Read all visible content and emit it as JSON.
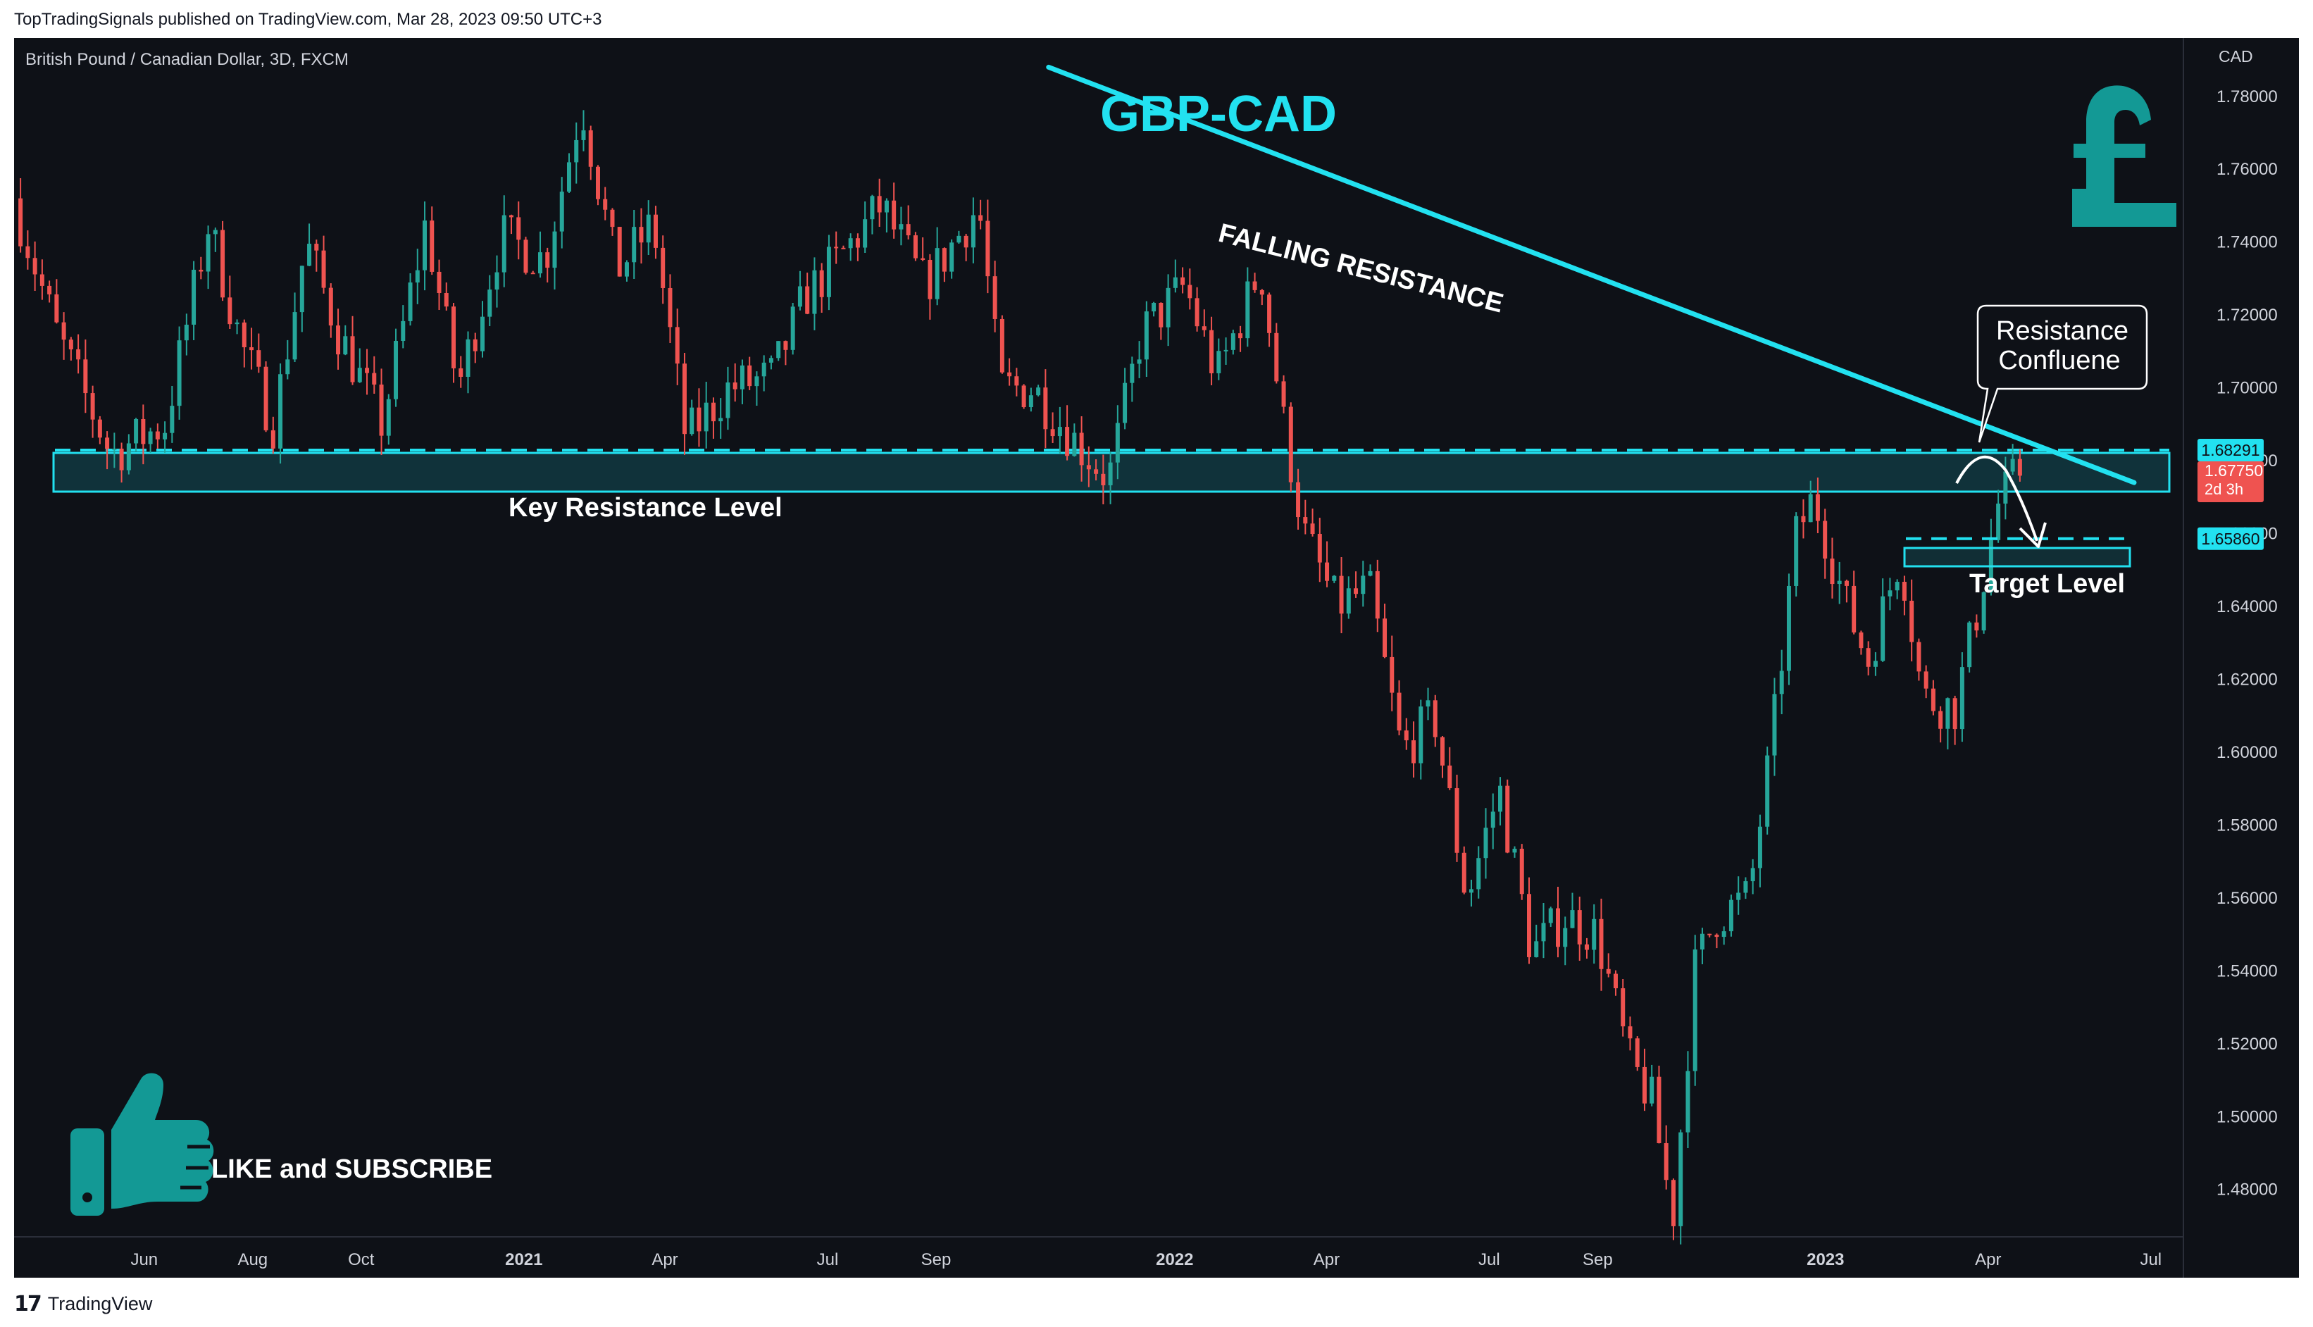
{
  "publisher_line": "TopTradingSignals published on TradingView.com, Mar 28, 2023 09:50 UTC+3",
  "footer_brand": "TradingView",
  "symbol_line": "British Pound / Canadian Dollar, 3D, FXCM",
  "currency": "CAD",
  "colors": {
    "background": "#0e1117",
    "up": "#26a69a",
    "down": "#ef5350",
    "accent": "#22e1f0",
    "teal_icon": "#139995"
  },
  "icons": [
    "pound-icon",
    "thumbs-up-icon",
    "tradingview-logo-icon"
  ],
  "annotations": {
    "title": "GBP-CAD",
    "falling_resistance": "FALLING RESISTANCE",
    "key_resistance": "Key Resistance Level",
    "target_level": "Target Level",
    "callout_line1": "Resistance",
    "callout_line2": "Confluene",
    "like_subscribe": "LIKE and SUBSCRIBE"
  },
  "chart_data": {
    "type": "candlestick",
    "symbol": "GBPCAD",
    "timeframe": "3D",
    "ylim": [
      1.467,
      1.796
    ],
    "y_ticks": [
      "1.78000",
      "1.76000",
      "1.74000",
      "1.72000",
      "1.70000",
      "1.68000",
      "1.66000",
      "1.64000",
      "1.62000",
      "1.60000",
      "1.58000",
      "1.56000",
      "1.54000",
      "1.52000",
      "1.50000",
      "1.48000"
    ],
    "x_ticks": [
      {
        "label": "Jun",
        "t": 0.06,
        "bold": false
      },
      {
        "label": "Aug",
        "t": 0.11,
        "bold": false
      },
      {
        "label": "Oct",
        "t": 0.16,
        "bold": false
      },
      {
        "label": "2021",
        "t": 0.235,
        "bold": true
      },
      {
        "label": "Apr",
        "t": 0.3,
        "bold": false
      },
      {
        "label": "Jul",
        "t": 0.375,
        "bold": false
      },
      {
        "label": "Sep",
        "t": 0.425,
        "bold": false
      },
      {
        "label": "2022",
        "t": 0.535,
        "bold": true
      },
      {
        "label": "Apr",
        "t": 0.605,
        "bold": false
      },
      {
        "label": "Jul",
        "t": 0.68,
        "bold": false
      },
      {
        "label": "Sep",
        "t": 0.73,
        "bold": false
      },
      {
        "label": "2023",
        "t": 0.835,
        "bold": true
      },
      {
        "label": "Apr",
        "t": 0.91,
        "bold": false
      },
      {
        "label": "Jul",
        "t": 0.985,
        "bold": false
      }
    ],
    "price_anchors": [
      {
        "t": 0.0,
        "p": 1.752
      },
      {
        "t": 0.02,
        "p": 1.715
      },
      {
        "t": 0.045,
        "p": 1.682
      },
      {
        "t": 0.07,
        "p": 1.69
      },
      {
        "t": 0.09,
        "p": 1.745
      },
      {
        "t": 0.105,
        "p": 1.712
      },
      {
        "t": 0.12,
        "p": 1.69
      },
      {
        "t": 0.135,
        "p": 1.74
      },
      {
        "t": 0.15,
        "p": 1.715
      },
      {
        "t": 0.17,
        "p": 1.69
      },
      {
        "t": 0.19,
        "p": 1.745
      },
      {
        "t": 0.205,
        "p": 1.7
      },
      {
        "t": 0.225,
        "p": 1.742
      },
      {
        "t": 0.245,
        "p": 1.735
      },
      {
        "t": 0.262,
        "p": 1.778
      },
      {
        "t": 0.278,
        "p": 1.732
      },
      {
        "t": 0.295,
        "p": 1.745
      },
      {
        "t": 0.31,
        "p": 1.686
      },
      {
        "t": 0.33,
        "p": 1.7
      },
      {
        "t": 0.35,
        "p": 1.703
      },
      {
        "t": 0.365,
        "p": 1.725
      },
      {
        "t": 0.38,
        "p": 1.735
      },
      {
        "t": 0.4,
        "p": 1.75
      },
      {
        "t": 0.42,
        "p": 1.728
      },
      {
        "t": 0.445,
        "p": 1.75
      },
      {
        "t": 0.455,
        "p": 1.7
      },
      {
        "t": 0.47,
        "p": 1.7
      },
      {
        "t": 0.49,
        "p": 1.685
      },
      {
        "t": 0.505,
        "p": 1.675
      },
      {
        "t": 0.52,
        "p": 1.715
      },
      {
        "t": 0.54,
        "p": 1.728
      },
      {
        "t": 0.555,
        "p": 1.703
      },
      {
        "t": 0.575,
        "p": 1.733
      },
      {
        "t": 0.585,
        "p": 1.692
      },
      {
        "t": 0.595,
        "p": 1.66
      },
      {
        "t": 0.61,
        "p": 1.64
      },
      {
        "t": 0.625,
        "p": 1.645
      },
      {
        "t": 0.64,
        "p": 1.6
      },
      {
        "t": 0.655,
        "p": 1.61
      },
      {
        "t": 0.67,
        "p": 1.56
      },
      {
        "t": 0.685,
        "p": 1.59
      },
      {
        "t": 0.7,
        "p": 1.545
      },
      {
        "t": 0.715,
        "p": 1.555
      },
      {
        "t": 0.73,
        "p": 1.55
      },
      {
        "t": 0.745,
        "p": 1.515
      },
      {
        "t": 0.755,
        "p": 1.505
      },
      {
        "t": 0.765,
        "p": 1.472
      },
      {
        "t": 0.775,
        "p": 1.54
      },
      {
        "t": 0.785,
        "p": 1.555
      },
      {
        "t": 0.8,
        "p": 1.56
      },
      {
        "t": 0.81,
        "p": 1.6
      },
      {
        "t": 0.822,
        "p": 1.66
      },
      {
        "t": 0.83,
        "p": 1.67
      },
      {
        "t": 0.845,
        "p": 1.64
      },
      {
        "t": 0.855,
        "p": 1.625
      },
      {
        "t": 0.87,
        "p": 1.655
      },
      {
        "t": 0.88,
        "p": 1.615
      },
      {
        "t": 0.895,
        "p": 1.612
      },
      {
        "t": 0.905,
        "p": 1.638
      },
      {
        "t": 0.915,
        "p": 1.668
      },
      {
        "t": 0.925,
        "p": 1.6775
      }
    ],
    "levels": {
      "key_resistance": 1.68291,
      "current": 1.6775,
      "target": 1.6586
    },
    "price_labels": {
      "key_resistance": "1.68291",
      "current": "1.67750",
      "countdown": "2d 3h",
      "target": "1.65860"
    },
    "falling_resistance_line": [
      {
        "t": 0.235,
        "p": 1.788
      },
      {
        "t": 1.0,
        "p": 1.674
      }
    ]
  }
}
